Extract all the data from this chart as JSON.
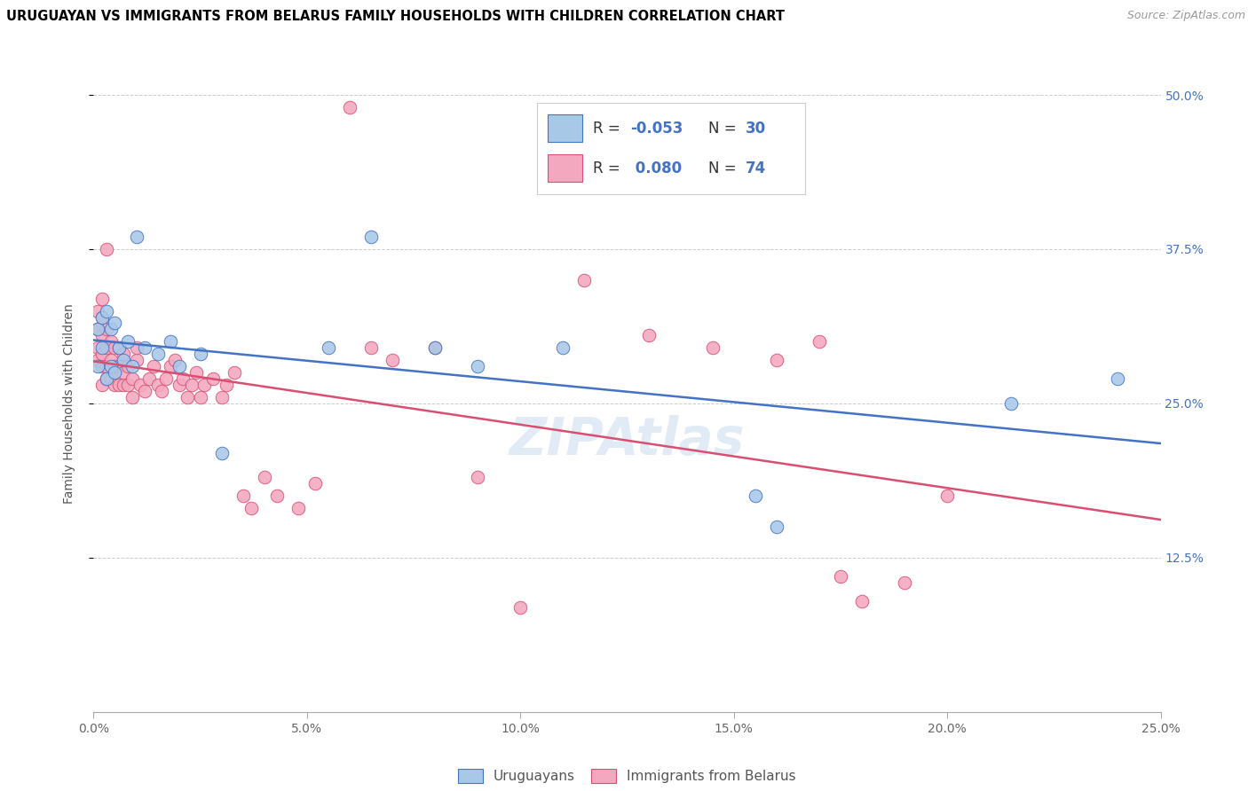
{
  "title": "URUGUAYAN VS IMMIGRANTS FROM BELARUS FAMILY HOUSEHOLDS WITH CHILDREN CORRELATION CHART",
  "source": "Source: ZipAtlas.com",
  "ylabel": "Family Households with Children",
  "r_uruguayan": -0.053,
  "n_uruguayan": 30,
  "r_belarus": 0.08,
  "n_belarus": 74,
  "color_uruguayan": "#a8c8e8",
  "color_belarus": "#f4a8c0",
  "line_color_uruguayan": "#4472c4",
  "line_color_belarus": "#d94f72",
  "xlim": [
    0.0,
    0.25
  ],
  "ylim": [
    0.0,
    0.5
  ],
  "xticks": [
    0.0,
    0.05,
    0.1,
    0.15,
    0.2,
    0.25
  ],
  "yticks": [
    0.125,
    0.25,
    0.375,
    0.5
  ],
  "xtick_labels": [
    "0.0%",
    "5.0%",
    "10.0%",
    "15.0%",
    "20.0%",
    "25.0%"
  ],
  "ytick_labels": [
    "12.5%",
    "25.0%",
    "37.5%",
    "50.0%"
  ],
  "uruguayan_x": [
    0.001,
    0.001,
    0.002,
    0.002,
    0.003,
    0.003,
    0.004,
    0.004,
    0.005,
    0.005,
    0.006,
    0.007,
    0.008,
    0.009,
    0.01,
    0.012,
    0.015,
    0.018,
    0.02,
    0.025,
    0.03,
    0.055,
    0.065,
    0.08,
    0.09,
    0.11,
    0.155,
    0.16,
    0.215,
    0.24
  ],
  "uruguayan_y": [
    0.28,
    0.31,
    0.295,
    0.32,
    0.27,
    0.325,
    0.28,
    0.31,
    0.275,
    0.315,
    0.295,
    0.285,
    0.3,
    0.28,
    0.385,
    0.295,
    0.29,
    0.3,
    0.28,
    0.29,
    0.21,
    0.295,
    0.385,
    0.295,
    0.28,
    0.295,
    0.175,
    0.15,
    0.25,
    0.27
  ],
  "belarus_x": [
    0.001,
    0.001,
    0.001,
    0.001,
    0.002,
    0.002,
    0.002,
    0.002,
    0.002,
    0.002,
    0.003,
    0.003,
    0.003,
    0.003,
    0.003,
    0.004,
    0.004,
    0.004,
    0.005,
    0.005,
    0.005,
    0.006,
    0.006,
    0.006,
    0.007,
    0.007,
    0.007,
    0.008,
    0.008,
    0.009,
    0.009,
    0.01,
    0.01,
    0.011,
    0.012,
    0.013,
    0.014,
    0.015,
    0.016,
    0.017,
    0.018,
    0.019,
    0.02,
    0.021,
    0.022,
    0.023,
    0.024,
    0.025,
    0.026,
    0.028,
    0.03,
    0.031,
    0.033,
    0.035,
    0.037,
    0.04,
    0.043,
    0.048,
    0.052,
    0.06,
    0.065,
    0.07,
    0.08,
    0.09,
    0.1,
    0.115,
    0.13,
    0.145,
    0.16,
    0.17,
    0.175,
    0.18,
    0.19,
    0.2
  ],
  "belarus_y": [
    0.285,
    0.295,
    0.31,
    0.325,
    0.28,
    0.29,
    0.305,
    0.32,
    0.335,
    0.265,
    0.27,
    0.28,
    0.295,
    0.31,
    0.375,
    0.27,
    0.285,
    0.3,
    0.265,
    0.28,
    0.295,
    0.265,
    0.28,
    0.295,
    0.265,
    0.275,
    0.29,
    0.265,
    0.28,
    0.255,
    0.27,
    0.285,
    0.295,
    0.265,
    0.26,
    0.27,
    0.28,
    0.265,
    0.26,
    0.27,
    0.28,
    0.285,
    0.265,
    0.27,
    0.255,
    0.265,
    0.275,
    0.255,
    0.265,
    0.27,
    0.255,
    0.265,
    0.275,
    0.175,
    0.165,
    0.19,
    0.175,
    0.165,
    0.185,
    0.49,
    0.295,
    0.285,
    0.295,
    0.19,
    0.085,
    0.35,
    0.305,
    0.295,
    0.285,
    0.3,
    0.11,
    0.09,
    0.105,
    0.175
  ]
}
